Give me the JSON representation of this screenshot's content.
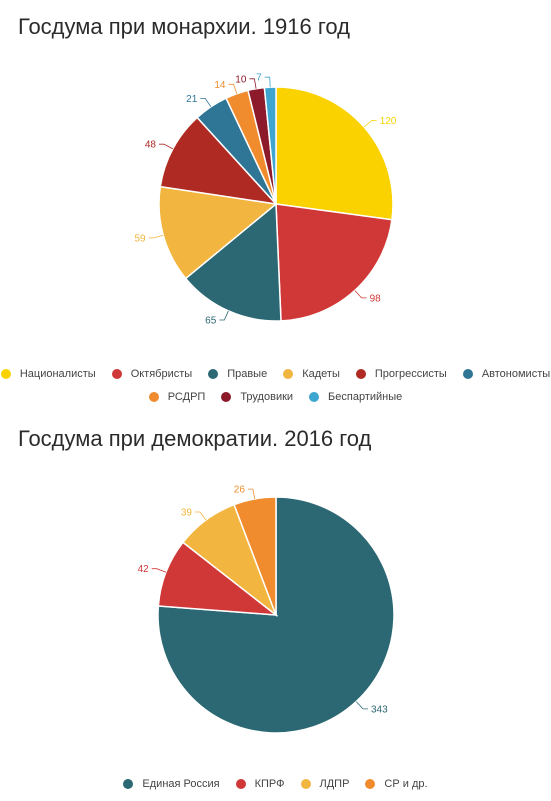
{
  "chart_data": [
    {
      "type": "pie",
      "title": "Госдума при монархии. 1916 год",
      "categories": [
        "Националисты",
        "Октябристы",
        "Правые",
        "Кадеты",
        "Прогрессисты",
        "Автономисты",
        "РСДРП",
        "Трудовики",
        "Беспартийные"
      ],
      "values": [
        120,
        98,
        65,
        59,
        48,
        21,
        14,
        10,
        7
      ],
      "colors": [
        "#F9D200",
        "#D03737",
        "#2B6873",
        "#F2B53F",
        "#AE2A22",
        "#2E7596",
        "#F08C2E",
        "#8C1A2A",
        "#3DA5CF"
      ],
      "legend_position": "bottom"
    },
    {
      "type": "pie",
      "title": "Госдума при демократии. 2016 год",
      "categories": [
        "Единая Россия",
        "КПРФ",
        "ЛДПР",
        "СР и др."
      ],
      "values": [
        343,
        42,
        39,
        26
      ],
      "colors": [
        "#2B6873",
        "#D03737",
        "#F2B53F",
        "#F08C2E"
      ],
      "legend_position": "bottom"
    }
  ]
}
